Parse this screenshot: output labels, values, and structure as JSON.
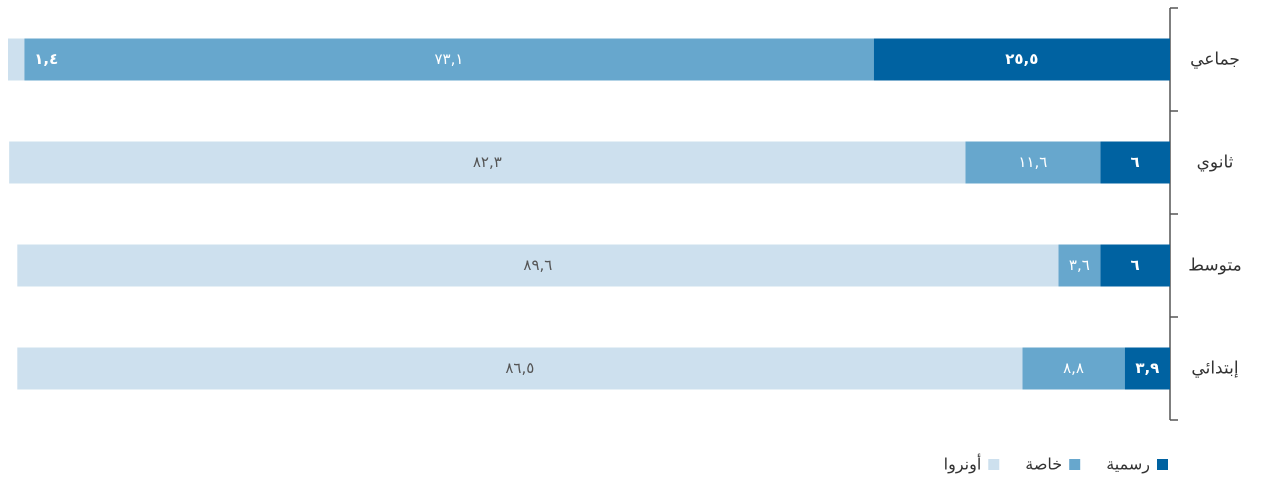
{
  "chart_data": {
    "type": "stacked-barh",
    "categories": [
      "جماعي",
      "ثانوي",
      "متوسط",
      "إبتدائي"
    ],
    "series": [
      {
        "name": "رسمية",
        "color": "#0062a1",
        "values": [
          25.5,
          6,
          6,
          3.9
        ],
        "value_labels": [
          "٢٥,٥",
          "٦",
          "٦",
          "٣,٩"
        ]
      },
      {
        "name": "خاصة",
        "color": "#67a7cd",
        "values": [
          73.1,
          11.6,
          3.6,
          8.8
        ],
        "value_labels": [
          "٧٣,١",
          "١١,٦",
          "٣,٦",
          "٨,٨"
        ]
      },
      {
        "name": "أونروا",
        "color": "#cde0ee",
        "values": [
          1.4,
          82.3,
          89.6,
          86.5
        ],
        "value_labels": [
          "١,٤",
          "٨٢,٣",
          "٨٩,٦",
          "٨٦,٥"
        ]
      }
    ],
    "xlim": [
      0,
      100
    ]
  }
}
